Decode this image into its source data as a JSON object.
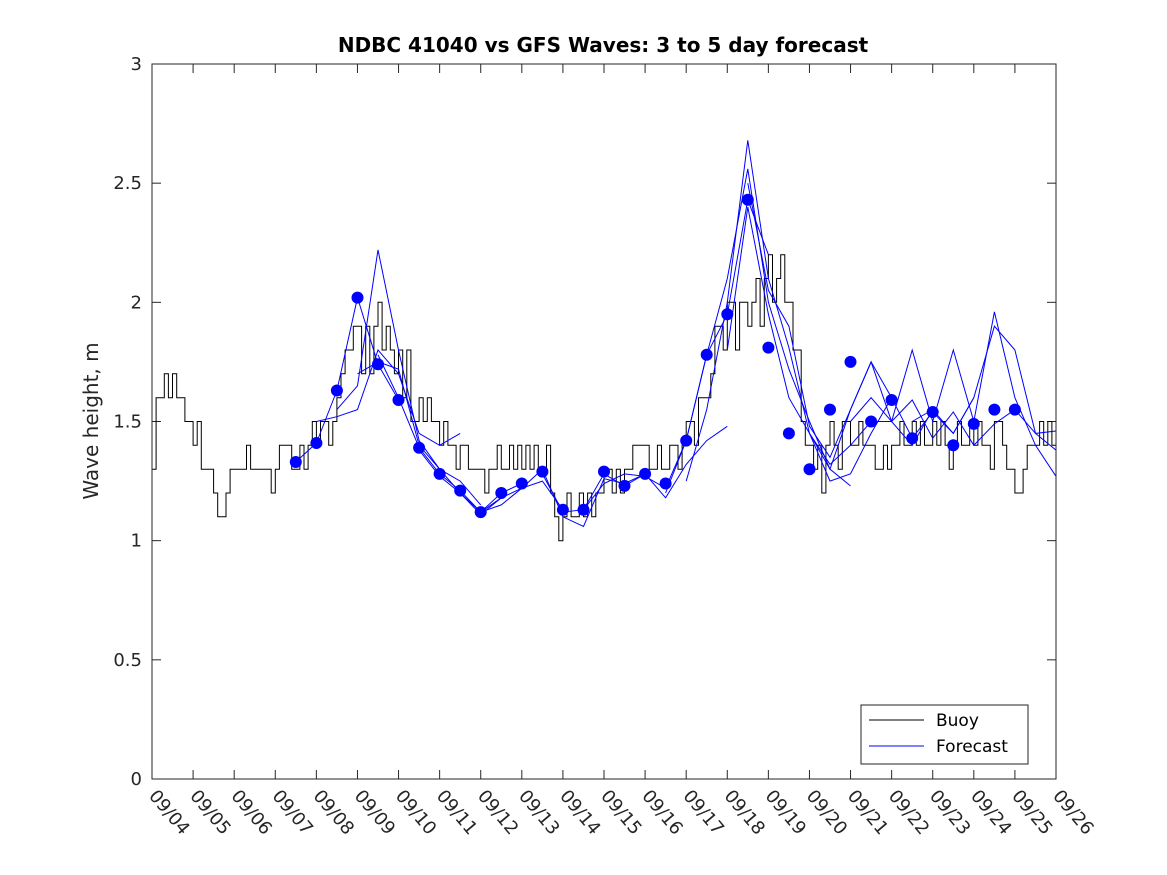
{
  "chart_data": {
    "type": "line",
    "title": "NDBC 41040 vs GFS Waves: 3 to 5 day forecast",
    "xlabel": "",
    "ylabel": "Wave height, m",
    "xlim": [
      0,
      22
    ],
    "ylim": [
      0,
      3
    ],
    "x_ticks": [
      "09/04",
      "09/05",
      "09/06",
      "09/07",
      "09/08",
      "09/09",
      "09/10",
      "09/11",
      "09/12",
      "09/13",
      "09/14",
      "09/15",
      "09/16",
      "09/17",
      "09/18",
      "09/19",
      "09/20",
      "09/21",
      "09/22",
      "09/23",
      "09/24",
      "09/25",
      "09/26"
    ],
    "y_ticks": [
      "0",
      "0.5",
      "1",
      "1.5",
      "2",
      "2.5",
      "3"
    ],
    "legend": {
      "position": "bottom-right",
      "entries": [
        "Buoy",
        "Forecast"
      ]
    },
    "colors": {
      "buoy": "#000000",
      "forecast": "#0000ff",
      "axes": "#262626"
    },
    "series": [
      {
        "name": "Buoy",
        "x": [
          0.0,
          0.1,
          0.2,
          0.3,
          0.4,
          0.5,
          0.6,
          0.7,
          0.8,
          0.9,
          1.0,
          1.1,
          1.2,
          1.3,
          1.4,
          1.5,
          1.6,
          1.7,
          1.8,
          1.9,
          2.0,
          2.1,
          2.2,
          2.3,
          2.4,
          2.5,
          2.6,
          2.7,
          2.8,
          2.9,
          3.0,
          3.1,
          3.2,
          3.3,
          3.4,
          3.5,
          3.6,
          3.7,
          3.8,
          3.9,
          4.0,
          4.1,
          4.2,
          4.3,
          4.4,
          4.5,
          4.6,
          4.7,
          4.8,
          4.9,
          5.0,
          5.1,
          5.2,
          5.3,
          5.4,
          5.5,
          5.6,
          5.7,
          5.8,
          5.9,
          6.0,
          6.1,
          6.2,
          6.3,
          6.4,
          6.5,
          6.6,
          6.7,
          6.8,
          6.9,
          7.0,
          7.1,
          7.2,
          7.3,
          7.4,
          7.5,
          7.6,
          7.7,
          7.8,
          7.9,
          8.0,
          8.1,
          8.2,
          8.3,
          8.4,
          8.5,
          8.6,
          8.7,
          8.8,
          8.9,
          9.0,
          9.1,
          9.2,
          9.3,
          9.4,
          9.5,
          9.6,
          9.7,
          9.8,
          9.9,
          10.0,
          10.1,
          10.2,
          10.3,
          10.4,
          10.5,
          10.6,
          10.7,
          10.8,
          10.9,
          11.0,
          11.1,
          11.2,
          11.3,
          11.4,
          11.5,
          11.6,
          11.7,
          11.8,
          11.9,
          12.0,
          12.1,
          12.2,
          12.3,
          12.4,
          12.5,
          12.6,
          12.7,
          12.8,
          12.9,
          13.0,
          13.1,
          13.2,
          13.3,
          13.4,
          13.5,
          13.6,
          13.7,
          13.8,
          13.9,
          14.0,
          14.1,
          14.2,
          14.3,
          14.4,
          14.5,
          14.6,
          14.7,
          14.8,
          14.9,
          15.0,
          15.1,
          15.2,
          15.3,
          15.4,
          15.5,
          15.6,
          15.7,
          15.8,
          15.9,
          16.0,
          16.1,
          16.2,
          16.3,
          16.4,
          16.5,
          16.6,
          16.7,
          16.8,
          16.9,
          17.0,
          17.1,
          17.2,
          17.3,
          17.4,
          17.5,
          17.6,
          17.7,
          17.8,
          17.9,
          18.0,
          18.1,
          18.2,
          18.3,
          18.4,
          18.5,
          18.6,
          18.7,
          18.8,
          18.9,
          19.0,
          19.1,
          19.2,
          19.3,
          19.4,
          19.5,
          19.6,
          19.7,
          19.8,
          19.9,
          20.0,
          20.1,
          20.2,
          20.3,
          20.4,
          20.5,
          20.6,
          20.7,
          20.8,
          20.9,
          21.0,
          21.1,
          21.2,
          21.3,
          21.4,
          21.5,
          21.6,
          21.7,
          21.8,
          21.9,
          22.0
        ],
        "values": [
          1.3,
          1.6,
          1.6,
          1.7,
          1.6,
          1.7,
          1.6,
          1.6,
          1.5,
          1.5,
          1.4,
          1.5,
          1.3,
          1.3,
          1.3,
          1.2,
          1.1,
          1.1,
          1.2,
          1.3,
          1.3,
          1.3,
          1.3,
          1.4,
          1.3,
          1.3,
          1.3,
          1.3,
          1.3,
          1.2,
          1.3,
          1.4,
          1.4,
          1.4,
          1.3,
          1.3,
          1.4,
          1.3,
          1.4,
          1.5,
          1.4,
          1.5,
          1.5,
          1.4,
          1.5,
          1.6,
          1.7,
          1.8,
          1.8,
          1.9,
          1.9,
          1.7,
          1.9,
          1.7,
          1.9,
          2.0,
          1.8,
          1.9,
          1.8,
          1.7,
          1.8,
          1.6,
          1.8,
          1.5,
          1.5,
          1.6,
          1.5,
          1.6,
          1.5,
          1.5,
          1.4,
          1.5,
          1.4,
          1.4,
          1.3,
          1.4,
          1.4,
          1.3,
          1.3,
          1.3,
          1.3,
          1.2,
          1.3,
          1.3,
          1.4,
          1.3,
          1.3,
          1.4,
          1.3,
          1.4,
          1.3,
          1.4,
          1.3,
          1.4,
          1.3,
          1.3,
          1.4,
          1.2,
          1.1,
          1.0,
          1.1,
          1.2,
          1.1,
          1.1,
          1.2,
          1.1,
          1.2,
          1.1,
          1.2,
          1.2,
          1.3,
          1.3,
          1.2,
          1.3,
          1.2,
          1.3,
          1.3,
          1.4,
          1.4,
          1.4,
          1.4,
          1.3,
          1.3,
          1.4,
          1.3,
          1.3,
          1.4,
          1.4,
          1.3,
          1.4,
          1.5,
          1.5,
          1.4,
          1.6,
          1.6,
          1.6,
          1.7,
          1.9,
          1.9,
          1.8,
          2.0,
          2.0,
          1.8,
          2.0,
          2.0,
          1.9,
          2.0,
          2.1,
          1.9,
          2.1,
          2.2,
          2.0,
          2.1,
          2.2,
          2.0,
          2.0,
          1.8,
          1.8,
          1.5,
          1.4,
          1.4,
          1.3,
          1.4,
          1.2,
          1.4,
          1.5,
          1.4,
          1.3,
          1.5,
          1.5,
          1.4,
          1.4,
          1.5,
          1.4,
          1.4,
          1.4,
          1.3,
          1.3,
          1.4,
          1.3,
          1.4,
          1.4,
          1.5,
          1.4,
          1.4,
          1.5,
          1.4,
          1.5,
          1.4,
          1.4,
          1.5,
          1.4,
          1.5,
          1.4,
          1.3,
          1.4,
          1.5,
          1.4,
          1.4,
          1.5,
          1.4,
          1.5,
          1.4,
          1.4,
          1.3,
          1.5,
          1.5,
          1.4,
          1.3,
          1.3,
          1.2,
          1.2,
          1.3,
          1.4,
          1.4,
          1.4,
          1.5,
          1.4,
          1.5,
          1.4,
          1.3
        ]
      },
      {
        "name": "Forecast",
        "runs": [
          {
            "x": [
              3.5,
              4.0,
              4.5,
              5.0,
              5.5,
              6.0
            ],
            "values": [
              1.33,
              1.41,
              1.63,
              2.02,
              1.74,
              1.59
            ]
          },
          {
            "x": [
              4.0,
              4.5,
              5.0,
              5.5,
              6.0,
              6.5,
              7.0,
              7.5
            ],
            "values": [
              1.5,
              1.52,
              1.55,
              1.8,
              1.7,
              1.45,
              1.4,
              1.45
            ]
          },
          {
            "x": [
              4.5,
              5.0,
              5.5,
              6.0,
              6.5,
              7.0,
              7.5,
              8.0
            ],
            "values": [
              1.55,
              1.65,
              2.22,
              1.8,
              1.42,
              1.3,
              1.25,
              1.15
            ]
          },
          {
            "x": [
              5.0,
              5.5,
              6.0,
              6.5,
              7.0,
              7.5,
              8.0,
              8.5
            ],
            "values": [
              1.7,
              1.75,
              1.72,
              1.4,
              1.3,
              1.2,
              1.12,
              1.18
            ]
          },
          {
            "x": [
              5.5,
              6.0,
              6.5,
              7.0,
              7.5,
              8.0,
              8.5,
              9.0
            ],
            "values": [
              1.78,
              1.6,
              1.39,
              1.28,
              1.21,
              1.12,
              1.2,
              1.24
            ]
          },
          {
            "x": [
              6.5,
              7.0,
              7.5,
              8.0,
              8.5,
              9.0,
              9.5,
              10.0
            ],
            "values": [
              1.38,
              1.27,
              1.2,
              1.11,
              1.18,
              1.22,
              1.25,
              1.13
            ]
          },
          {
            "x": [
              8.0,
              8.5,
              9.0,
              9.5,
              10.0,
              10.5,
              11.0,
              11.5,
              12.0
            ],
            "values": [
              1.12,
              1.15,
              1.22,
              1.3,
              1.1,
              1.06,
              1.26,
              1.24,
              1.28
            ]
          },
          {
            "x": [
              9.5,
              10.0,
              10.5,
              11.0,
              11.5,
              12.0,
              12.5,
              13.0,
              13.5,
              14.0
            ],
            "values": [
              1.28,
              1.12,
              1.13,
              1.28,
              1.23,
              1.28,
              1.18,
              1.32,
              1.42,
              1.48
            ]
          },
          {
            "x": [
              10.5,
              11.0,
              11.5,
              12.0,
              12.5,
              13.0,
              13.5,
              14.0,
              14.5,
              15.0
            ],
            "values": [
              1.13,
              1.24,
              1.28,
              1.27,
              1.22,
              1.42,
              1.78,
              1.95,
              2.43,
              2.2
            ]
          },
          {
            "x": [
              12.5,
              13.0,
              13.5,
              14.0,
              14.5,
              15.0,
              15.5,
              16.0,
              16.5,
              17.0
            ],
            "values": [
              1.2,
              1.42,
              1.78,
              2.1,
              2.56,
              2.0,
              1.72,
              1.5,
              1.3,
              1.23
            ]
          },
          {
            "x": [
              13.0,
              13.5,
              14.0,
              14.5,
              15.0,
              15.5,
              16.0,
              16.5,
              17.0,
              17.5,
              18.0
            ],
            "values": [
              1.25,
              1.55,
              2.0,
              2.68,
              2.1,
              1.81,
              1.45,
              1.25,
              1.28,
              1.45,
              1.6
            ]
          },
          {
            "x": [
              14.0,
              14.5,
              15.0,
              15.5,
              16.0,
              16.5,
              17.0,
              17.5,
              18.0,
              18.5,
              19.0
            ],
            "values": [
              1.8,
              2.4,
              1.95,
              1.6,
              1.45,
              1.32,
              1.4,
              1.5,
              1.5,
              1.4,
              1.55
            ]
          },
          {
            "x": [
              14.5,
              15.0,
              15.5,
              16.0,
              16.5,
              17.0,
              17.5,
              18.0,
              18.5,
              19.0,
              19.5,
              20.0
            ],
            "values": [
              2.5,
              2.05,
              1.9,
              1.48,
              1.35,
              1.55,
              1.75,
              1.6,
              1.43,
              1.54,
              1.45,
              1.6
            ]
          },
          {
            "x": [
              16.0,
              16.5,
              17.0,
              17.5,
              18.0,
              18.5,
              19.0,
              19.5,
              20.0,
              20.5,
              21.0,
              21.5,
              22.0
            ],
            "values": [
              1.45,
              1.3,
              1.55,
              1.75,
              1.5,
              1.59,
              1.43,
              1.54,
              1.4,
              1.49,
              1.55,
              1.45,
              1.38
            ]
          },
          {
            "x": [
              17.0,
              17.5,
              18.0,
              18.5,
              19.0,
              19.5,
              20.0,
              20.5,
              21.0,
              21.5,
              22.0
            ],
            "values": [
              1.5,
              1.6,
              1.5,
              1.8,
              1.5,
              1.8,
              1.5,
              1.96,
              1.6,
              1.4,
              1.27
            ]
          },
          {
            "x": [
              18.5,
              19.0,
              19.5,
              20.0,
              20.5,
              21.0,
              21.5,
              22.0
            ],
            "values": [
              1.5,
              1.55,
              1.45,
              1.6,
              1.9,
              1.8,
              1.45,
              1.46
            ]
          }
        ]
      }
    ],
    "markers": {
      "x": [
        3.5,
        4.0,
        4.5,
        5.0,
        5.5,
        6.0,
        6.5,
        7.0,
        7.5,
        8.0,
        8.5,
        9.0,
        9.5,
        10.0,
        10.5,
        11.0,
        11.5,
        12.0,
        12.5,
        13.0,
        13.5,
        14.0,
        14.5,
        15.0,
        15.5,
        16.0,
        16.5,
        17.0,
        17.5,
        18.0,
        18.5,
        19.0,
        19.5,
        20.0,
        20.5,
        21.0
      ],
      "values": [
        1.33,
        1.41,
        1.63,
        2.02,
        1.74,
        1.59,
        1.39,
        1.28,
        1.21,
        1.12,
        1.2,
        1.24,
        1.29,
        1.13,
        1.13,
        1.29,
        1.23,
        1.28,
        1.24,
        1.42,
        1.78,
        1.95,
        2.43,
        1.81,
        1.45,
        1.3,
        1.55,
        1.75,
        1.5,
        1.59,
        1.43,
        1.54,
        1.4,
        1.49,
        1.55,
        1.55
      ]
    }
  }
}
